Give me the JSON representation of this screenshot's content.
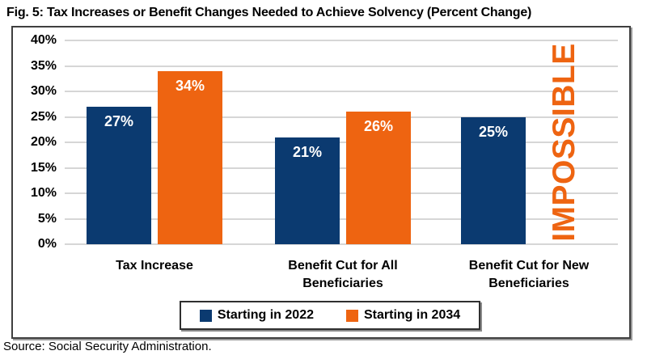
{
  "title": "Fig. 5: Tax Increases or Benefit Changes Needed to Achieve Solvency (Percent Change)",
  "source": "Source: Social Security Administration.",
  "colors": {
    "series_2022": "#0b3a70",
    "series_2034": "#ee6411",
    "grid": "#d6d6d6",
    "box_border": "#3f3f3f",
    "annotation": "#ee6411",
    "bar_value_text": "#ffffff"
  },
  "chart_data": {
    "type": "bar",
    "title": "Fig. 5: Tax Increases or Benefit Changes Needed to Achieve Solvency (Percent Change)",
    "categories": [
      "Tax Increase",
      "Benefit Cut for All Beneficiaries",
      "Benefit Cut for New Beneficiaries"
    ],
    "series": [
      {
        "name": "Starting in 2022",
        "color": "#0b3a70",
        "values": [
          27,
          21,
          25
        ],
        "value_labels": [
          "27%",
          "21%",
          "25%"
        ]
      },
      {
        "name": "Starting in 2034",
        "color": "#ee6411",
        "values": [
          34,
          26,
          null
        ],
        "value_labels": [
          "34%",
          "26%",
          null
        ]
      }
    ],
    "annotation": {
      "text": "IMPOSSIBLE",
      "category_index": 2,
      "series_index": 1,
      "color": "#ee6411"
    },
    "y_ticks": [
      "0%",
      "5%",
      "10%",
      "15%",
      "20%",
      "25%",
      "30%",
      "35%",
      "40%"
    ],
    "y_tick_values": [
      0,
      5,
      10,
      15,
      20,
      25,
      30,
      35,
      40
    ],
    "ylim": [
      0,
      40
    ],
    "grid": true,
    "legend_position": "bottom",
    "legend": [
      "Starting in 2022",
      "Starting in 2034"
    ],
    "source": "Source: Social Security Administration."
  }
}
